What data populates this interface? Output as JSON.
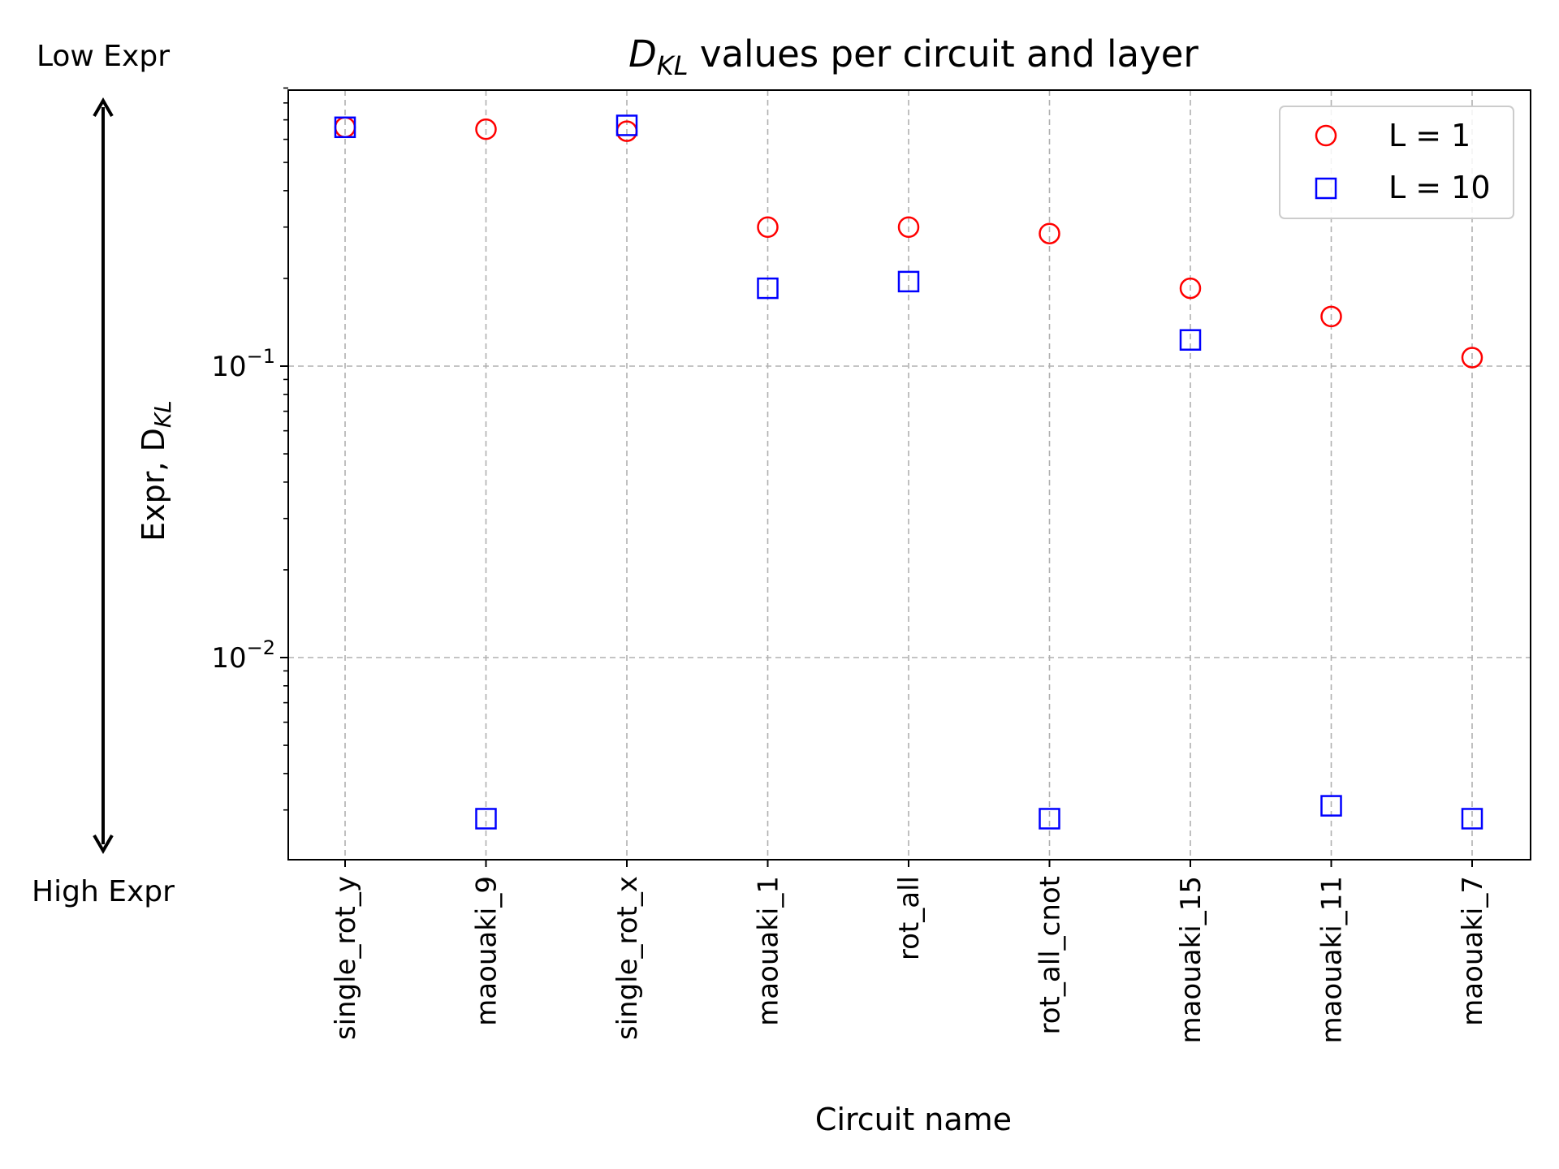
{
  "chart_data": {
    "type": "scatter",
    "title_main": "D",
    "title_sub": "KL",
    "title_rest": " values per circuit and layer",
    "xlabel": "Circuit name",
    "ylabel_main": "Expr, D",
    "ylabel_sub": "KL",
    "yscale": "log",
    "ylim": [
      0.0025,
      0.9
    ],
    "grid": true,
    "legend_position": "upper right",
    "categories": [
      "single_rot_y",
      "maouaki_9",
      "single_rot_x",
      "maouaki_1",
      "rot_all",
      "rot_all_cnot",
      "maouaki_15",
      "maouaki_11",
      "maouaki_7"
    ],
    "series": [
      {
        "name": "L = 1",
        "marker": "circle",
        "color": "#ff0000",
        "values": [
          0.66,
          0.65,
          0.64,
          0.3,
          0.3,
          0.285,
          0.185,
          0.148,
          0.107
        ]
      },
      {
        "name": "L = 10",
        "marker": "square",
        "color": "#0000ff",
        "values": [
          0.66,
          0.0028,
          0.67,
          0.185,
          0.195,
          0.0028,
          0.123,
          0.0031,
          0.0028
        ]
      }
    ],
    "y_major_ticks": [
      {
        "value": 0.1,
        "base": "10",
        "exp": "−1"
      },
      {
        "value": 0.01,
        "base": "10",
        "exp": "−2"
      }
    ],
    "side_annotation": {
      "top": "Low Expr",
      "bottom": "High Expr"
    }
  }
}
